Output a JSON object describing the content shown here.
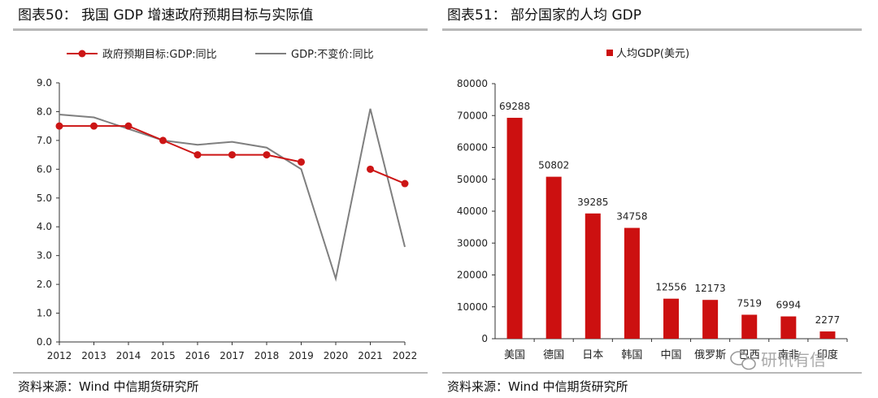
{
  "left": {
    "title": "图表50：  我国 GDP 增速政府预期目标与实际值",
    "source": "资料来源：Wind  中信期货研究所"
  },
  "right": {
    "title": "图表51：  部分国家的人均 GDP",
    "source": "资料来源：Wind  中信期货研究所"
  },
  "watermark": "研讯有信",
  "colors": {
    "red": "#cc1515",
    "gray": "#7f7f7f",
    "bar": "#cc1010",
    "rule": "#b8b8b8"
  },
  "chart_data": [
    {
      "type": "line",
      "title": "我国 GDP 增速政府预期目标与实际值",
      "x": [
        "2012",
        "2013",
        "2014",
        "2015",
        "2016",
        "2017",
        "2018",
        "2019",
        "2020",
        "2021",
        "2022"
      ],
      "series": [
        {
          "name": "政府预期目标:GDP:同比",
          "values": [
            7.5,
            7.5,
            7.5,
            7.0,
            6.5,
            6.5,
            6.5,
            6.25,
            null,
            6.0,
            5.5
          ],
          "markers": true
        },
        {
          "name": "GDP:不变价:同比",
          "values": [
            7.9,
            7.8,
            7.4,
            7.0,
            6.85,
            6.95,
            6.75,
            6.0,
            2.2,
            8.1,
            3.3
          ],
          "markers": false
        }
      ],
      "yticks": [
        "9.0",
        "8.0",
        "7.0",
        "6.0",
        "5.0",
        "4.0",
        "3.0",
        "2.0",
        "1.0",
        "0.0"
      ],
      "ylim": [
        0,
        9
      ],
      "legend_position": "top",
      "grid": false
    },
    {
      "type": "bar",
      "title": "部分国家的人均 GDP",
      "series": [
        {
          "name": "人均GDP(美元)"
        }
      ],
      "categories": [
        "美国",
        "德国",
        "日本",
        "韩国",
        "中国",
        "俄罗斯",
        "巴西",
        "南非",
        "印度"
      ],
      "values": [
        69288,
        50802,
        39285,
        34758,
        12556,
        12173,
        7519,
        6994,
        2277
      ],
      "value_labels": [
        "69288",
        "50802",
        "39285",
        "34758",
        "12556",
        "12173",
        "7519",
        "6994",
        "2277"
      ],
      "yticks": [
        "80000",
        "70000",
        "60000",
        "50000",
        "40000",
        "30000",
        "20000",
        "10000",
        "0"
      ],
      "ylim": [
        0,
        80000
      ],
      "legend_position": "top",
      "grid": false
    }
  ]
}
